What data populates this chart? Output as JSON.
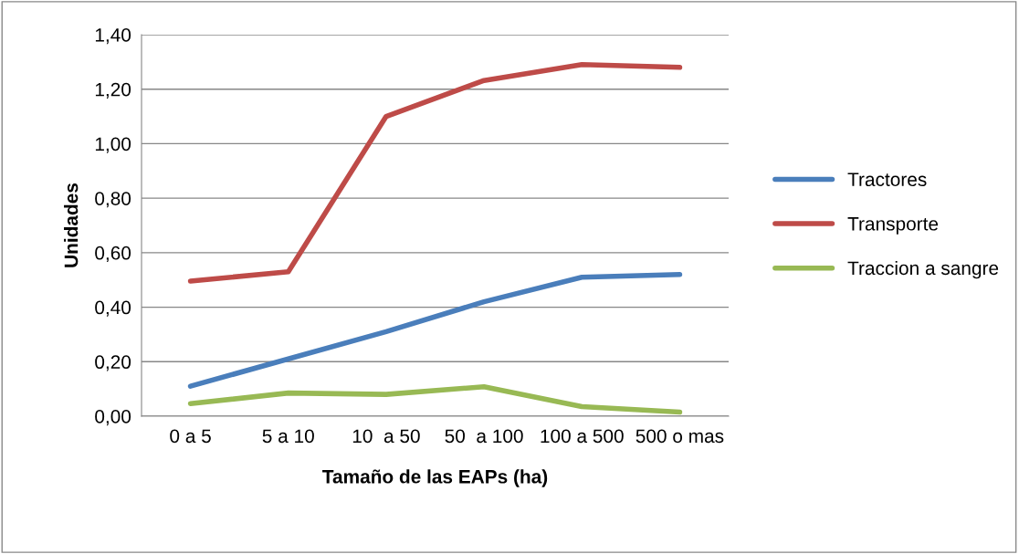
{
  "chart_data": {
    "type": "line",
    "xlabel": "Tamaño de las EAPs (ha)",
    "ylabel": "Unidades",
    "categories": [
      "0 a 5",
      "5 a 10",
      "10  a 50",
      "50  a 100",
      "100 a 500",
      "500 o mas"
    ],
    "series": [
      {
        "name": "Tractores",
        "color": "#4a7ebb",
        "values": [
          0.11,
          0.21,
          0.31,
          0.42,
          0.51,
          0.52
        ]
      },
      {
        "name": "Transporte",
        "color": "#be4b48",
        "values": [
          0.496,
          0.53,
          1.1,
          1.232,
          1.29,
          1.28
        ]
      },
      {
        "name": "Traccion a sangre",
        "color": "#98b954",
        "values": [
          0.046,
          0.085,
          0.08,
          0.108,
          0.035,
          0.015
        ]
      }
    ],
    "ylim": [
      0,
      1.4
    ],
    "yticks": [
      {
        "value": 0,
        "label": "0,00"
      },
      {
        "value": 0.2,
        "label": "0,20"
      },
      {
        "value": 0.4,
        "label": "0,40"
      },
      {
        "value": 0.6,
        "label": "0,60"
      },
      {
        "value": 0.8,
        "label": "0,80"
      },
      {
        "value": 1.0,
        "label": "1,00"
      },
      {
        "value": 1.2,
        "label": "1,20"
      },
      {
        "value": 1.4,
        "label": "1,40"
      }
    ],
    "grid": "y",
    "legend": "right",
    "marker": "none",
    "line_style": "solid"
  }
}
